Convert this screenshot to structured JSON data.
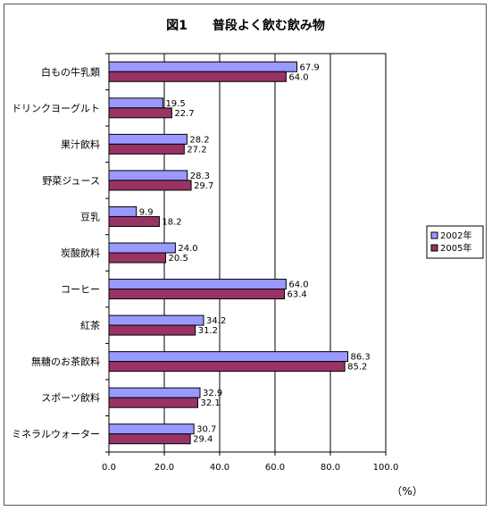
{
  "chart_data": {
    "type": "bar",
    "orientation": "horizontal",
    "title": "図1　　普段よく飲む飲み物",
    "unit_label": "（%）",
    "categories": [
      "白もの牛乳類",
      "ドリンクヨーグルト",
      "果汁飲料",
      "野菜ジュース",
      "豆乳",
      "炭酸飲料",
      "コーヒー",
      "紅茶",
      "無糖のお茶飲料",
      "スポーツ飲料",
      "ミネラルウォーター"
    ],
    "series": [
      {
        "name": "2002年",
        "color": "#9999ff",
        "values": [
          67.9,
          19.5,
          28.2,
          28.3,
          9.9,
          24.0,
          64.0,
          34.2,
          86.3,
          32.9,
          30.7
        ]
      },
      {
        "name": "2005年",
        "color": "#993366",
        "values": [
          64.0,
          22.7,
          27.2,
          29.7,
          18.2,
          20.5,
          63.4,
          31.2,
          85.2,
          32.1,
          29.4
        ]
      }
    ],
    "xlim": [
      0,
      100
    ],
    "xticks": [
      "0.0",
      "20.0",
      "40.0",
      "60.0",
      "80.0",
      "100.0"
    ],
    "grid": true,
    "legend_position": "right"
  }
}
